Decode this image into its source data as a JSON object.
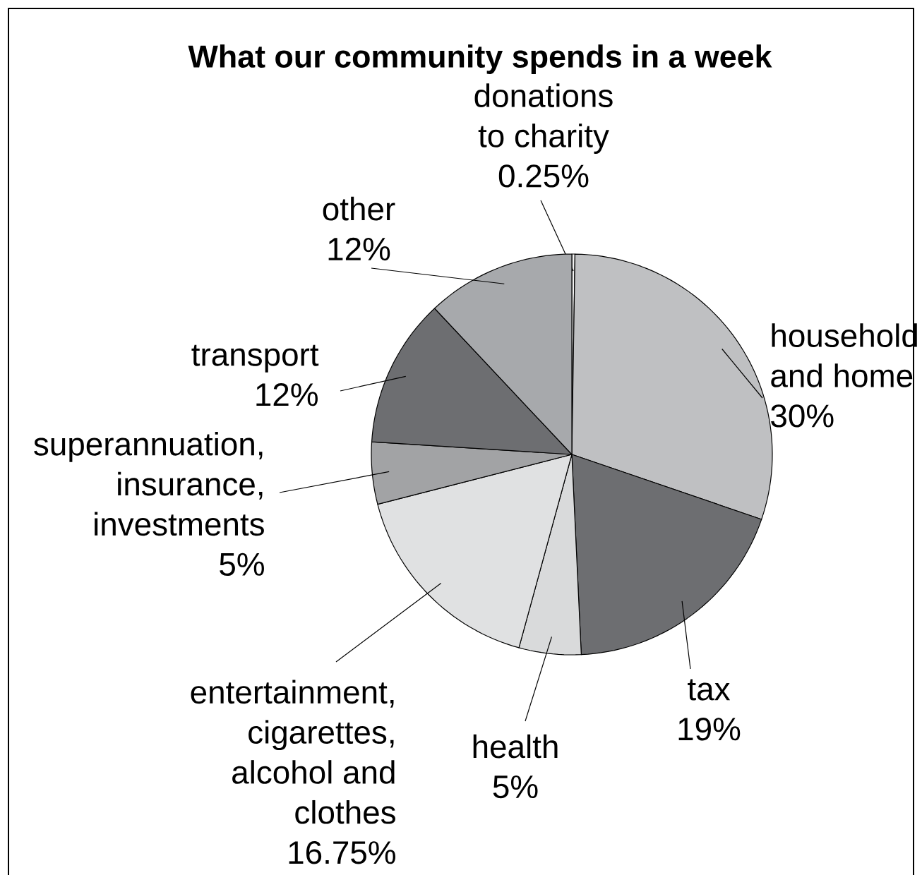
{
  "chart_data": {
    "type": "pie",
    "title": "What our community spends in a week",
    "categories": [
      "donations to charity",
      "household and home",
      "tax",
      "health",
      "entertainment, cigarettes, alcohol and clothes",
      "superannuation, insurance, investments",
      "transport",
      "other"
    ],
    "values": [
      0.25,
      30,
      19,
      5,
      16.75,
      5,
      12,
      12
    ],
    "value_labels": [
      "0.25%",
      "30%",
      "19%",
      "5%",
      "16.75%",
      "5%",
      "12%",
      "12%"
    ],
    "colors": [
      "#f2f2f2",
      "#bfc0c2",
      "#6d6e71",
      "#d9dadb",
      "#e0e1e2",
      "#a2a3a5",
      "#6d6e71",
      "#a7a9ac"
    ]
  }
}
